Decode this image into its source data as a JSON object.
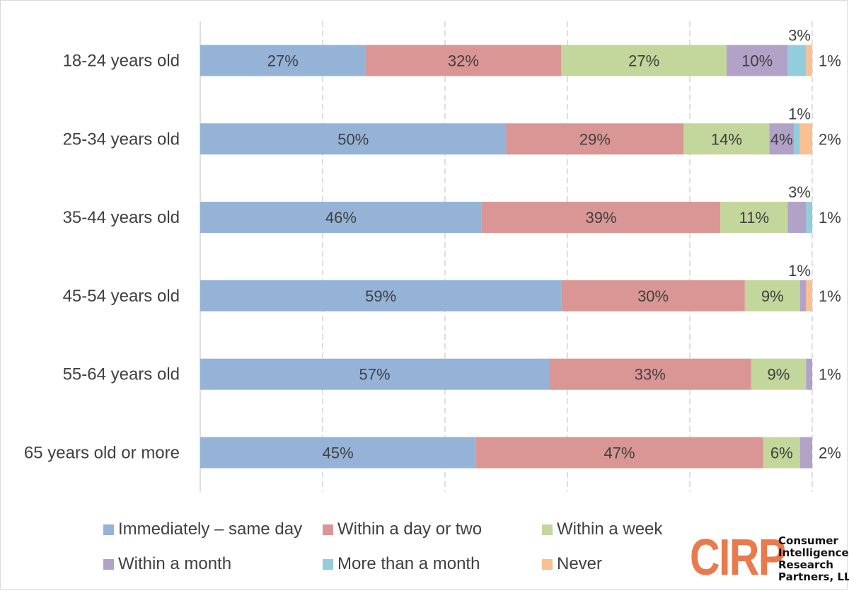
{
  "chart_data": {
    "type": "bar",
    "orientation": "horizontal",
    "stacked": true,
    "percent": true,
    "xlim": [
      0,
      100
    ],
    "categories": [
      "18-24 years old",
      "25-34 years old",
      "35-44 years old",
      "45-54 years old",
      "55-64 years old",
      "65 years old or more"
    ],
    "series": [
      {
        "name": "Immediately – same day",
        "color": "#95b3d7",
        "values": [
          27,
          50,
          46,
          59,
          57,
          45
        ]
      },
      {
        "name": "Within a day or two",
        "color": "#d99694",
        "values": [
          32,
          29,
          39,
          30,
          33,
          47
        ]
      },
      {
        "name": "Within a week",
        "color": "#c3d69b",
        "values": [
          27,
          14,
          11,
          9,
          9,
          6
        ]
      },
      {
        "name": "Within a month",
        "color": "#b3a2c7",
        "values": [
          10,
          4,
          3,
          1,
          1,
          2
        ]
      },
      {
        "name": "More than a month",
        "color": "#93cddd",
        "values": [
          3,
          1,
          1,
          0,
          0,
          0
        ]
      },
      {
        "name": "Never",
        "color": "#fac090",
        "values": [
          1,
          2,
          0,
          1,
          0,
          0
        ]
      }
    ],
    "data_labels": [
      {
        "inside": [
          "27%",
          "32%",
          "27%",
          "10%"
        ],
        "above": "3%",
        "right": "1%"
      },
      {
        "inside": [
          "50%",
          "29%",
          "14%",
          "4%"
        ],
        "above": "1%",
        "right": "2%"
      },
      {
        "inside": [
          "46%",
          "39%",
          "11%"
        ],
        "above": "3%",
        "right": "1%"
      },
      {
        "inside": [
          "59%",
          "30%",
          "9%"
        ],
        "above": "1%",
        "right": "1%"
      },
      {
        "inside": [
          "57%",
          "33%",
          "9%"
        ],
        "above": "",
        "right": "1%"
      },
      {
        "inside": [
          "45%",
          "47%",
          "6%"
        ],
        "above": "",
        "right": "2%"
      }
    ],
    "gridlines": "dashed vertical",
    "legend_position": "bottom"
  },
  "logo": {
    "mark": "CIRP",
    "lines": [
      "Consumer",
      "Intelligence",
      "Research",
      "Partners, LLC"
    ]
  }
}
